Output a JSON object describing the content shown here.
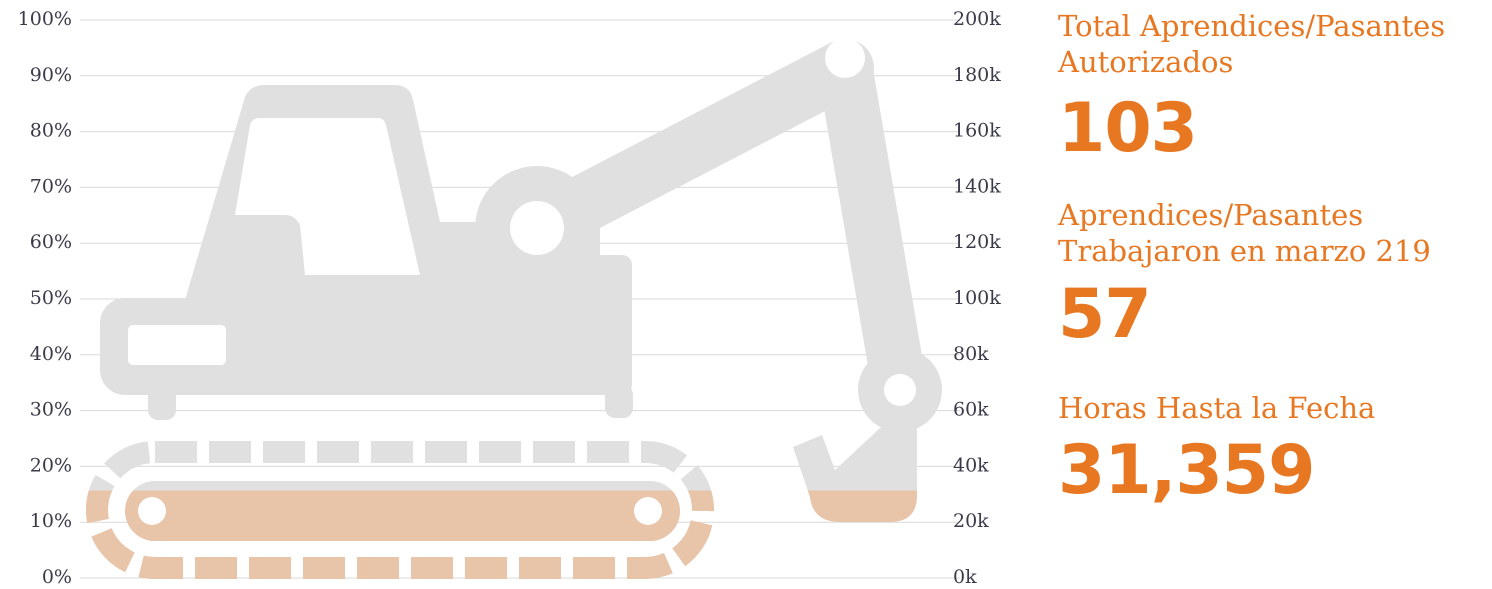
{
  "chart_data": {
    "type": "pictorial",
    "values": [
      31359
    ],
    "value_labels": [
      "31,359"
    ],
    "color": "#e8c4a8",
    "icon_color": "#e0e0e0",
    "ylim": [
      0,
      100
    ],
    "yticks": [
      {
        "value": 0,
        "label": "0%"
      },
      {
        "value": 10,
        "label": "10%"
      },
      {
        "value": 20,
        "label": "20%"
      },
      {
        "value": 30,
        "label": "30%"
      },
      {
        "value": 40,
        "label": "40%"
      },
      {
        "value": 50,
        "label": "50%"
      },
      {
        "value": 60,
        "label": "60%"
      },
      {
        "value": 70,
        "label": "70%"
      },
      {
        "value": 80,
        "label": "80%"
      },
      {
        "value": 90,
        "label": "90%"
      },
      {
        "value": 100,
        "label": "100%"
      }
    ],
    "y2lim": [
      0,
      200000
    ],
    "y2ticks": [
      {
        "value": 0,
        "label": "0k"
      },
      {
        "value": 20000,
        "label": "20k"
      },
      {
        "value": 40000,
        "label": "40k"
      },
      {
        "value": 60000,
        "label": "60k"
      },
      {
        "value": 80000,
        "label": "80k"
      },
      {
        "value": 100000,
        "label": "100k"
      },
      {
        "value": 120000,
        "label": "120k"
      },
      {
        "value": 140000,
        "label": "140k"
      },
      {
        "value": 160000,
        "label": "160k"
      },
      {
        "value": 180000,
        "label": "180k"
      },
      {
        "value": 200000,
        "label": "200k"
      }
    ],
    "grid": true
  },
  "stats": [
    {
      "label": "Total Aprendices/Pasantes Autorizados",
      "value": "103"
    },
    {
      "label": "Aprendices/Pasantes Trabajaron en marzo 219",
      "value": "57"
    },
    {
      "label": "Horas Hasta la Fecha"
    }
  ]
}
